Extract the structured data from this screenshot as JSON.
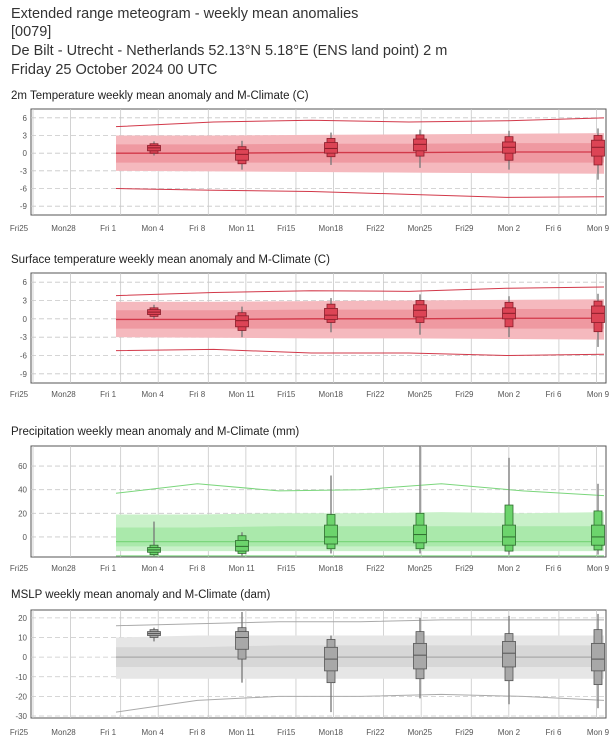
{
  "header": {
    "line1": "Extended range meteogram - weekly mean anomalies",
    "line2": " [0079]",
    "line3": "De Bilt - Utrecht - Netherlands 52.13°N 5.18°E (ENS land point) 2 m",
    "line4": "Friday 25 October 2024 00 UTC"
  },
  "x_tick_labels": [
    "Fri25",
    "Mon28",
    "Fri 1",
    "Mon 4",
    "Fri 8",
    "Mon 11",
    "Fri15",
    "Mon18",
    "Fri22",
    "Mon25",
    "Fri29",
    "Mon 2",
    "Fri 6",
    "Mon 9"
  ],
  "colors": {
    "temp_band_outer": "#f5b9be",
    "temp_band_inner": "#ec8f97",
    "temp_line": "#d2394a",
    "temp_box": "#dc4455",
    "precip_band_outer": "#c9f1c9",
    "precip_band_inner": "#9fe6a0",
    "precip_line": "#7bd67c",
    "precip_box": "#6cd46c",
    "mslp_band_outer": "#e6e6e6",
    "mslp_band_inner": "#d2d2d2",
    "mslp_line": "#aaaaaa",
    "mslp_box": "#a8a8a8"
  },
  "chart_data": [
    {
      "type": "box",
      "title": "2m Temperature weekly mean anomaly and M-Climate (C)",
      "yticks": [
        -9,
        -6,
        -3,
        0,
        3,
        6
      ],
      "ylim": [
        -10.5,
        7.5
      ],
      "theme": "temp",
      "x": [
        "Mon 4",
        "Mon 11",
        "Mon18",
        "Mon25",
        "Mon 2",
        "Mon 9"
      ],
      "climate": {
        "x_days": [
          3,
          10,
          17,
          24,
          31,
          38
        ],
        "max": [
          4.5,
          5.3,
          5.6,
          5.3,
          5.5,
          6.0
        ],
        "p90": [
          3.0,
          3.0,
          3.1,
          3.2,
          3.3,
          3.4
        ],
        "p75": [
          1.5,
          1.5,
          1.6,
          1.6,
          1.7,
          1.7
        ],
        "median": [
          0.0,
          0.0,
          0.1,
          0.1,
          0.2,
          0.2
        ],
        "p25": [
          -1.6,
          -1.6,
          -1.6,
          -1.6,
          -1.6,
          -1.6
        ],
        "p10": [
          -3.0,
          -3.1,
          -3.2,
          -3.3,
          -3.4,
          -3.5
        ],
        "min": [
          -6.0,
          -6.3,
          -6.5,
          -7.0,
          -7.5,
          -7.4
        ]
      },
      "boxes": [
        {
          "x_day": 3,
          "min": -0.4,
          "p10": 0.0,
          "p25": 0.4,
          "median": 0.9,
          "p75": 1.3,
          "p90": 1.6,
          "max": 2.0
        },
        {
          "x_day": 10,
          "min": -2.8,
          "p10": -1.8,
          "p25": -1.2,
          "median": -0.2,
          "p75": 0.6,
          "p90": 1.1,
          "max": 2.1
        },
        {
          "x_day": 17,
          "min": -2.0,
          "p10": -0.6,
          "p25": 0.0,
          "median": 0.8,
          "p75": 1.8,
          "p90": 2.5,
          "max": 3.5
        },
        {
          "x_day": 24,
          "min": -2.5,
          "p10": -0.5,
          "p25": 0.4,
          "median": 1.5,
          "p75": 2.4,
          "p90": 3.1,
          "max": 4.0
        },
        {
          "x_day": 31,
          "min": -2.8,
          "p10": -1.2,
          "p25": 0.0,
          "median": 1.0,
          "p75": 1.9,
          "p90": 2.8,
          "max": 3.8
        },
        {
          "x_day": 38,
          "min": -4.5,
          "p10": -2.0,
          "p25": -0.5,
          "median": 1.0,
          "p75": 2.2,
          "p90": 3.0,
          "max": 4.2
        }
      ]
    },
    {
      "type": "box",
      "title": "Surface temperature weekly mean anomaly and M-Climate (C)",
      "yticks": [
        -9,
        -6,
        -3,
        0,
        3,
        6
      ],
      "ylim": [
        -10.5,
        7.5
      ],
      "theme": "temp",
      "x": [
        "Mon 4",
        "Mon 11",
        "Mon18",
        "Mon25",
        "Mon 2",
        "Mon 9"
      ],
      "climate": {
        "x_days": [
          3,
          10,
          17,
          24,
          31,
          38
        ],
        "max": [
          3.8,
          4.3,
          4.6,
          4.5,
          5.0,
          5.2
        ],
        "p90": [
          2.8,
          2.8,
          2.9,
          3.0,
          3.1,
          3.2
        ],
        "p75": [
          1.4,
          1.4,
          1.5,
          1.5,
          1.6,
          1.6
        ],
        "median": [
          -0.1,
          -0.1,
          0.0,
          0.0,
          0.1,
          0.1
        ],
        "p25": [
          -1.6,
          -1.6,
          -1.6,
          -1.6,
          -1.6,
          -1.6
        ],
        "p10": [
          -3.0,
          -3.1,
          -3.2,
          -3.2,
          -3.3,
          -3.4
        ],
        "min": [
          -5.2,
          -5.0,
          -5.6,
          -5.6,
          -6.0,
          -5.8
        ]
      },
      "boxes": [
        {
          "x_day": 3,
          "min": 0.0,
          "p10": 0.4,
          "p25": 0.7,
          "median": 1.1,
          "p75": 1.5,
          "p90": 1.8,
          "max": 2.3
        },
        {
          "x_day": 10,
          "min": -3.0,
          "p10": -1.9,
          "p25": -1.3,
          "median": -0.3,
          "p75": 0.5,
          "p90": 1.0,
          "max": 2.0
        },
        {
          "x_day": 17,
          "min": -2.2,
          "p10": -0.6,
          "p25": -0.1,
          "median": 0.6,
          "p75": 1.7,
          "p90": 2.4,
          "max": 3.4
        },
        {
          "x_day": 24,
          "min": -2.6,
          "p10": -0.6,
          "p25": 0.3,
          "median": 1.4,
          "p75": 2.3,
          "p90": 3.0,
          "max": 4.0
        },
        {
          "x_day": 31,
          "min": -3.0,
          "p10": -1.3,
          "p25": 0.0,
          "median": 0.9,
          "p75": 1.8,
          "p90": 2.7,
          "max": 3.7
        },
        {
          "x_day": 38,
          "min": -4.6,
          "p10": -2.1,
          "p25": -0.6,
          "median": 0.9,
          "p75": 2.1,
          "p90": 2.9,
          "max": 4.1
        }
      ]
    },
    {
      "type": "box",
      "title": "Precipitation weekly mean anomaly and M-Climate (mm)",
      "yticks": [
        0,
        20,
        40,
        60
      ],
      "ylim": [
        -17,
        77
      ],
      "theme": "precip",
      "x": [
        "Mon 4",
        "Mon 11",
        "Mon18",
        "Mon25",
        "Mon 2",
        "Mon 9"
      ],
      "climate": {
        "x_days": [
          0,
          4,
          10,
          17,
          24,
          31,
          38
        ],
        "max": [
          37,
          45,
          39,
          40,
          45,
          39,
          35
        ],
        "p90": [
          19,
          19,
          20,
          20,
          21,
          20,
          21
        ],
        "p75": [
          8,
          8,
          9,
          9,
          9,
          9,
          9
        ],
        "median": [
          -4,
          -4,
          -4,
          -4,
          -4,
          -4,
          -4
        ],
        "p25": [
          -8,
          -8,
          -8,
          -8,
          -8,
          -8,
          -8
        ],
        "p10": [
          -12,
          -12,
          -12,
          -12,
          -12,
          -12,
          -12
        ],
        "min": [
          -16,
          -16,
          -16,
          -16,
          -16,
          -16,
          -16
        ]
      },
      "boxes": [
        {
          "x_day": 3,
          "min": -16,
          "p10": -15,
          "p25": -13,
          "median": -11,
          "p75": -9,
          "p90": -7,
          "max": 13
        },
        {
          "x_day": 10,
          "min": -16,
          "p10": -14,
          "p25": -12,
          "median": -8,
          "p75": -3,
          "p90": 1,
          "max": 4
        },
        {
          "x_day": 17,
          "min": -14,
          "p10": -10,
          "p25": -6,
          "median": 0,
          "p75": 10,
          "p90": 19,
          "max": 52
        },
        {
          "x_day": 24,
          "min": -14,
          "p10": -10,
          "p25": -5,
          "median": 2,
          "p75": 10,
          "p90": 20,
          "max": 77
        },
        {
          "x_day": 31,
          "min": -15,
          "p10": -12,
          "p25": -7,
          "median": 0,
          "p75": 10,
          "p90": 27,
          "max": 67
        },
        {
          "x_day": 38,
          "min": -15,
          "p10": -11,
          "p25": -7,
          "median": 0,
          "p75": 10,
          "p90": 22,
          "max": 45
        }
      ]
    },
    {
      "type": "box",
      "title": "MSLP weekly mean anomaly and M-Climate (dam)",
      "yticks": [
        -30,
        -20,
        -10,
        0,
        10,
        20
      ],
      "ylim": [
        -31,
        24
      ],
      "theme": "mslp",
      "x": [
        "Mon 4",
        "Mon 11",
        "Mon18",
        "Mon25",
        "Mon 2",
        "Mon 9"
      ],
      "climate": {
        "x_days": [
          0,
          4,
          10,
          17,
          24,
          31,
          38
        ],
        "max": [
          16,
          17,
          18,
          18,
          19,
          19,
          19
        ],
        "p90": [
          10,
          11,
          11,
          11,
          11,
          11,
          11
        ],
        "p75": [
          5,
          5,
          6,
          6,
          6,
          6,
          6
        ],
        "median": [
          0,
          0,
          0,
          0,
          0,
          0,
          0
        ],
        "p25": [
          -5,
          -5,
          -5,
          -5,
          -5,
          -5,
          -5
        ],
        "p10": [
          -11,
          -11,
          -11,
          -11,
          -11,
          -11,
          -11
        ],
        "min": [
          -28,
          -22,
          -20,
          -20,
          -19,
          -20,
          -22
        ]
      },
      "boxes": [
        {
          "x_day": 3,
          "min": 8,
          "p10": 10,
          "p25": 11,
          "median": 12,
          "p75": 13,
          "p90": 14,
          "max": 15
        },
        {
          "x_day": 10,
          "min": -13,
          "p10": -1,
          "p25": 4,
          "median": 10,
          "p75": 13,
          "p90": 15,
          "max": 23
        },
        {
          "x_day": 17,
          "min": -28,
          "p10": -13,
          "p25": -7,
          "median": -1,
          "p75": 5,
          "p90": 9,
          "max": 11
        },
        {
          "x_day": 24,
          "min": -21,
          "p10": -11,
          "p25": -6,
          "median": 1,
          "p75": 7,
          "p90": 13,
          "max": 20
        },
        {
          "x_day": 31,
          "min": -24,
          "p10": -12,
          "p25": -5,
          "median": 2,
          "p75": 8,
          "p90": 12,
          "max": 21
        },
        {
          "x_day": 38,
          "min": -26,
          "p10": -14,
          "p25": -7,
          "median": -1,
          "p75": 7,
          "p90": 14,
          "max": 22
        }
      ]
    }
  ]
}
